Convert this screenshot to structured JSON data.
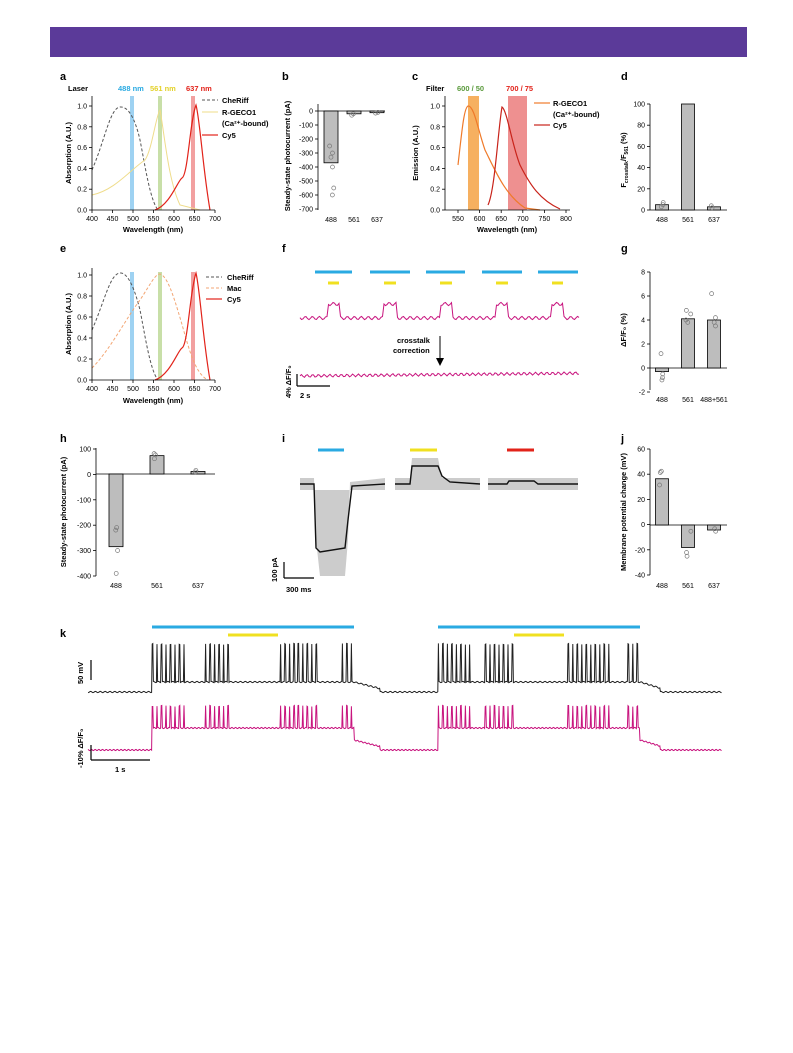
{
  "panel_letters": {
    "a": "a",
    "b": "b",
    "c": "c",
    "d": "d",
    "e": "e",
    "f": "f",
    "g": "g",
    "h": "h",
    "i": "i",
    "j": "j",
    "k": "k"
  },
  "colors": {
    "blue": "#2aaae2",
    "yellow": "#f0e020",
    "red": "#e2231a",
    "green": "#94c47d",
    "orange": "#f39c3b",
    "magenta": "#c8147e",
    "black": "#222222",
    "bar": "#bdbdbd",
    "banner": "#5b3a99"
  },
  "panel_a": {
    "header": "Laser",
    "laser_labels": [
      "488 nm",
      "561 nm",
      "637 nm"
    ],
    "legend": [
      "CheRiff",
      "R-GECO1",
      "(Ca²⁺-bound)",
      "Cy5"
    ],
    "ylabel": "Absorption (A.U.)",
    "xlabel": "Wavelength (nm)",
    "xticks": [
      "400",
      "450",
      "500",
      "550",
      "600",
      "650",
      "700"
    ],
    "yticks": [
      "0.0",
      "0.2",
      "0.4",
      "0.6",
      "0.8",
      "1.0"
    ]
  },
  "panel_b": {
    "ylabel": "Steady-state photocurrent (pA)",
    "yticks": [
      "0",
      "-100",
      "-200",
      "-300",
      "-400",
      "-500",
      "-600",
      "-700"
    ],
    "categories": [
      "488",
      "561",
      "637"
    ]
  },
  "panel_c": {
    "header": "Filter",
    "filter_labels": [
      "600 / 50",
      "700 / 75"
    ],
    "legend": [
      "R-GECO1",
      "(Ca²⁺-bound)",
      "Cy5"
    ],
    "ylabel": "Emission (A.U.)",
    "xlabel": "Wavelength (nm)",
    "xticks": [
      "550",
      "600",
      "650",
      "700",
      "750",
      "800"
    ],
    "yticks": [
      "0.0",
      "0.2",
      "0.4",
      "0.6",
      "0.8",
      "1.0"
    ]
  },
  "panel_d": {
    "ylabel_main": "F",
    "ylabel_sub1": "crosstalk",
    "ylabel_mid": "/F",
    "ylabel_sub2": "561",
    "ylabel_end": " (%)",
    "yticks": [
      "0",
      "20",
      "40",
      "60",
      "80",
      "100"
    ],
    "categories": [
      "488",
      "561",
      "637"
    ]
  },
  "panel_e": {
    "legend": [
      "CheRiff",
      "Mac",
      "Cy5"
    ],
    "ylabel": "Absorption (A.U.)",
    "xlabel": "Wavelength (nm)",
    "xticks": [
      "400",
      "450",
      "500",
      "550",
      "600",
      "650",
      "700"
    ],
    "yticks": [
      "0.0",
      "0.2",
      "0.4",
      "0.6",
      "0.8",
      "1.0"
    ]
  },
  "panel_f": {
    "annotation_line1": "crosstalk",
    "annotation_line2": "correction",
    "scale_y": "4% ΔF/F₀",
    "scale_x": "2 s"
  },
  "panel_g": {
    "ylabel": "ΔF/F₀ (%)",
    "yticks": [
      "8",
      "6",
      "4",
      "2",
      "0",
      "-2"
    ],
    "categories": [
      "488",
      "561",
      "488+561"
    ]
  },
  "panel_h": {
    "ylabel": "Steady-state photocurrent (pA)",
    "yticks": [
      "100",
      "0",
      "-100",
      "-200",
      "-300",
      "-400"
    ],
    "categories": [
      "488",
      "561",
      "637"
    ]
  },
  "panel_i": {
    "scale_y": "100 pA",
    "scale_x": "300 ms"
  },
  "panel_j": {
    "ylabel": "Membrane potential change (mV)",
    "yticks": [
      "60",
      "40",
      "20",
      "0",
      "-20",
      "-40"
    ],
    "categories": [
      "488",
      "561",
      "637"
    ]
  },
  "panel_k": {
    "scale_y1": "50 mV",
    "scale_y2": "-10% ΔF/F₀",
    "scale_x": "1 s"
  },
  "chart_data": [
    {
      "panel": "a",
      "type": "line",
      "series": [
        {
          "name": "CheRiff",
          "x": [
            400,
            420,
            440,
            460,
            470,
            480,
            490,
            500,
            520,
            540
          ],
          "y": [
            0.55,
            0.75,
            0.92,
            1.0,
            0.98,
            0.9,
            0.72,
            0.5,
            0.15,
            0.02
          ]
        },
        {
          "name": "R-GECO1",
          "x": [
            400,
            450,
            480,
            500,
            520,
            540,
            555,
            565,
            580,
            600,
            620
          ],
          "y": [
            0.15,
            0.18,
            0.25,
            0.38,
            0.45,
            0.6,
            0.95,
            0.5,
            0.15,
            0.02,
            0.0
          ]
        },
        {
          "name": "Cy5",
          "x": [
            540,
            560,
            580,
            600,
            620,
            640,
            650,
            660,
            680,
            700
          ],
          "y": [
            0.0,
            0.04,
            0.1,
            0.28,
            0.35,
            0.7,
            1.0,
            0.6,
            0.08,
            0.01
          ]
        }
      ],
      "xlim": [
        400,
        700
      ],
      "ylim": [
        0,
        1.1
      ]
    },
    {
      "panel": "b",
      "type": "bar",
      "categories": [
        "488",
        "561",
        "637"
      ],
      "values": [
        -370,
        -20,
        -12
      ],
      "ylim": [
        -700,
        50
      ]
    },
    {
      "panel": "c",
      "type": "line",
      "series": [
        {
          "name": "R-GECO1",
          "x": [
            560,
            580,
            590,
            600,
            620,
            650,
            680,
            700
          ],
          "y": [
            0.45,
            0.9,
            1.0,
            0.88,
            0.6,
            0.3,
            0.1,
            0.03
          ]
        },
        {
          "name": "Cy5",
          "x": [
            630,
            650,
            665,
            680,
            700,
            720,
            750,
            780
          ],
          "y": [
            0.05,
            0.5,
            1.0,
            0.75,
            0.4,
            0.2,
            0.06,
            0.01
          ]
        }
      ],
      "xlim": [
        530,
        810
      ],
      "ylim": [
        0,
        1.1
      ]
    },
    {
      "panel": "d",
      "type": "bar",
      "categories": [
        "488",
        "561",
        "637"
      ],
      "values": [
        5,
        100,
        3
      ],
      "ylim": [
        0,
        105
      ]
    },
    {
      "panel": "e",
      "type": "line",
      "series": [
        {
          "name": "CheRiff",
          "x": [
            400,
            420,
            440,
            460,
            470,
            480,
            490,
            500,
            520,
            540
          ],
          "y": [
            0.55,
            0.75,
            0.92,
            1.0,
            0.98,
            0.9,
            0.72,
            0.5,
            0.15,
            0.02
          ]
        },
        {
          "name": "Mac",
          "x": [
            400,
            450,
            500,
            530,
            550,
            570,
            600,
            630,
            660
          ],
          "y": [
            0.15,
            0.35,
            0.7,
            0.9,
            1.0,
            0.9,
            0.55,
            0.2,
            0.05
          ]
        },
        {
          "name": "Cy5",
          "x": [
            540,
            560,
            580,
            600,
            620,
            640,
            650,
            660,
            680,
            700
          ],
          "y": [
            0.0,
            0.04,
            0.1,
            0.28,
            0.35,
            0.7,
            1.0,
            0.6,
            0.08,
            0.01
          ]
        }
      ],
      "xlim": [
        400,
        700
      ],
      "ylim": [
        0,
        1.1
      ]
    },
    {
      "panel": "g",
      "type": "bar",
      "categories": [
        "488",
        "561",
        "488+561"
      ],
      "values": [
        -0.3,
        4.1,
        4.0
      ],
      "ylim": [
        -2,
        8
      ]
    },
    {
      "panel": "h",
      "type": "bar",
      "categories": [
        "488",
        "561",
        "637"
      ],
      "values": [
        -285,
        72,
        10
      ],
      "ylim": [
        -400,
        100
      ]
    },
    {
      "panel": "j",
      "type": "bar",
      "categories": [
        "488",
        "561",
        "637"
      ],
      "values": [
        37,
        -18,
        -4
      ],
      "ylim": [
        -40,
        60
      ]
    }
  ]
}
